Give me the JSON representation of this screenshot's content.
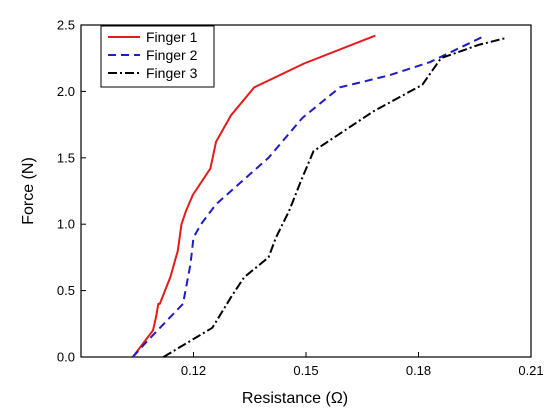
{
  "chart_data": {
    "type": "line",
    "title": "",
    "xlabel": "Resistance (Ω)",
    "ylabel": "Force (N)",
    "xlim": [
      0.09,
      0.21
    ],
    "ylim": [
      0.0,
      2.5
    ],
    "xticks": [
      0.12,
      0.15,
      0.18,
      0.21
    ],
    "xtick_labels": [
      "0.12",
      "0.15",
      "0.18",
      "0.21"
    ],
    "yticks": [
      0.0,
      0.5,
      1.0,
      1.5,
      2.0,
      2.5
    ],
    "ytick_labels": [
      "0.0",
      "0.5",
      "1.0",
      "1.5",
      "2.0",
      "2.5"
    ],
    "grid": false,
    "legend": "top-left",
    "series": [
      {
        "name": "Finger 1",
        "color": "#e8191a",
        "style": "solid",
        "x": [
          0.1038,
          0.1092,
          0.11,
          0.1106,
          0.111,
          0.1138,
          0.1158,
          0.1168,
          0.118,
          0.1198,
          0.1245,
          0.126,
          0.13,
          0.1362,
          0.1495,
          0.1685
        ],
        "y": [
          0.0,
          0.2,
          0.3,
          0.4,
          0.4,
          0.6,
          0.8,
          1.0,
          1.1,
          1.22,
          1.42,
          1.62,
          1.82,
          2.03,
          2.21,
          2.42
        ]
      },
      {
        "name": "Finger 2",
        "color": "#1c1cc8",
        "style": "dashed",
        "x": [
          0.1038,
          0.107,
          0.1172,
          0.1192,
          0.12,
          0.122,
          0.126,
          0.132,
          0.14,
          0.149,
          0.159,
          0.172,
          0.183,
          0.197
        ],
        "y": [
          0.0,
          0.1,
          0.4,
          0.7,
          0.9,
          1.0,
          1.15,
          1.3,
          1.5,
          1.8,
          2.03,
          2.12,
          2.22,
          2.41
        ]
      },
      {
        "name": "Finger 3",
        "color": "#000000",
        "style": "dashdot",
        "x": [
          0.112,
          0.125,
          0.13,
          0.1335,
          0.14,
          0.142,
          0.1455,
          0.149,
          0.152,
          0.168,
          0.181,
          0.186,
          0.196,
          0.203
        ],
        "y": [
          0.0,
          0.22,
          0.45,
          0.6,
          0.75,
          0.9,
          1.1,
          1.35,
          1.55,
          1.85,
          2.05,
          2.25,
          2.35,
          2.4
        ]
      }
    ]
  }
}
